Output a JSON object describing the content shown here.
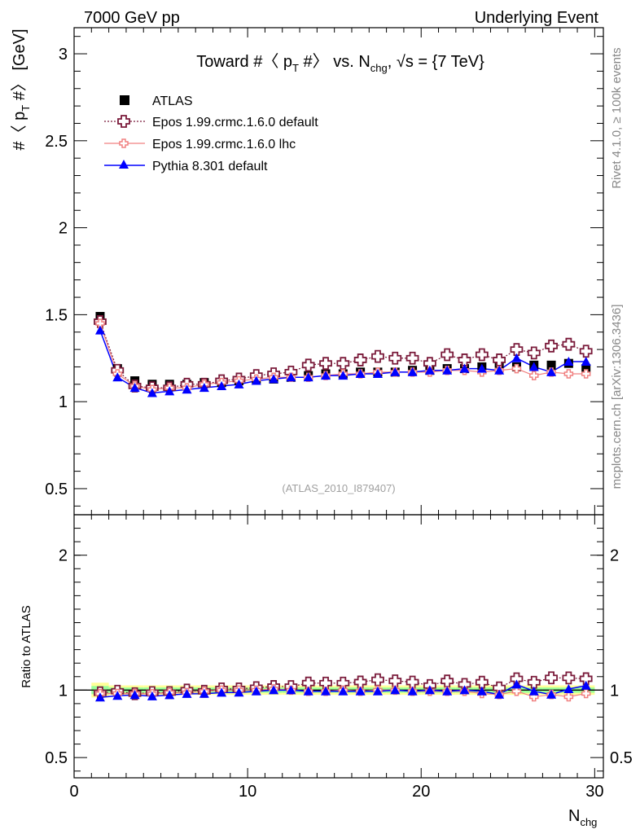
{
  "header": {
    "left": "7000 GeV pp",
    "right": "Underlying Event"
  },
  "side_labels": {
    "top": "Rivet 4.1.0, ≥ 100k events",
    "bottom": "mcplots.cern.ch [arXiv:1306.3436]"
  },
  "chart_data": {
    "type": "line",
    "title_parts": {
      "a": "Toward #〈 p",
      "a_sub": "T",
      "b": " #〉 vs. N",
      "b_sub": "chg",
      "c": ", √s = {7 TeV}"
    },
    "ylabel": {
      "a": "#〈 p",
      "sub": "T",
      "b": " #〉 [GeV]"
    },
    "ratio_ylabel": "Ratio to ATLAS",
    "xlabel": {
      "main": "N",
      "sub": "chg"
    },
    "watermark": "(ATLAS_2010_I879407)",
    "xlim": [
      0,
      30.5
    ],
    "ylim": [
      0.35,
      3.15
    ],
    "ratio_ylim": [
      0.35,
      2.3
    ],
    "x_ticks": [
      "0",
      "10",
      "20",
      "30"
    ],
    "y_ticks": [
      "0.5",
      "1",
      "1.5",
      "2",
      "2.5",
      "3"
    ],
    "ratio_y_ticks": [
      "0.5",
      "1",
      "2"
    ],
    "x": [
      1.5,
      2.5,
      3.5,
      4.5,
      5.5,
      6.5,
      7.5,
      8.5,
      9.5,
      10.5,
      11.5,
      12.5,
      13.5,
      14.5,
      15.5,
      16.5,
      17.5,
      18.5,
      19.5,
      20.5,
      21.5,
      22.5,
      23.5,
      24.5,
      25.5,
      26.5,
      27.5,
      28.5,
      29.5
    ],
    "series": [
      {
        "name": "ATLAS",
        "color": "#000000",
        "marker": "square",
        "values": [
          1.49,
          1.19,
          1.12,
          1.1,
          1.1,
          1.1,
          1.11,
          1.11,
          1.12,
          1.13,
          1.13,
          1.14,
          1.15,
          1.16,
          1.16,
          1.17,
          1.17,
          1.17,
          1.18,
          1.18,
          1.19,
          1.19,
          1.2,
          1.22,
          1.2,
          1.21,
          1.21,
          1.22,
          1.19
        ]
      },
      {
        "name": "Epos 1.99.crmc.1.6.0 default",
        "color": "#7a1a3a",
        "marker": "cross",
        "values": [
          1.46,
          1.18,
          1.09,
          1.08,
          1.08,
          1.1,
          1.1,
          1.12,
          1.13,
          1.15,
          1.16,
          1.17,
          1.21,
          1.22,
          1.22,
          1.24,
          1.26,
          1.25,
          1.25,
          1.22,
          1.27,
          1.24,
          1.27,
          1.24,
          1.3,
          1.28,
          1.32,
          1.33,
          1.29
        ]
      },
      {
        "name": "Epos 1.99.crmc.1.6.0 lhc",
        "color": "#f08080",
        "marker": "cross-small",
        "values": [
          1.45,
          1.16,
          1.09,
          1.07,
          1.08,
          1.08,
          1.1,
          1.11,
          1.12,
          1.13,
          1.14,
          1.14,
          1.14,
          1.15,
          1.16,
          1.16,
          1.17,
          1.17,
          1.17,
          1.17,
          1.18,
          1.18,
          1.17,
          1.18,
          1.19,
          1.15,
          1.17,
          1.16,
          1.16
        ]
      },
      {
        "name": "Pythia 8.301 default",
        "color": "#0000ff",
        "marker": "triangle",
        "values": [
          1.41,
          1.14,
          1.08,
          1.05,
          1.06,
          1.07,
          1.08,
          1.09,
          1.1,
          1.12,
          1.13,
          1.14,
          1.14,
          1.15,
          1.15,
          1.16,
          1.16,
          1.17,
          1.17,
          1.18,
          1.18,
          1.19,
          1.19,
          1.18,
          1.25,
          1.2,
          1.17,
          1.23,
          1.23
        ]
      }
    ]
  }
}
